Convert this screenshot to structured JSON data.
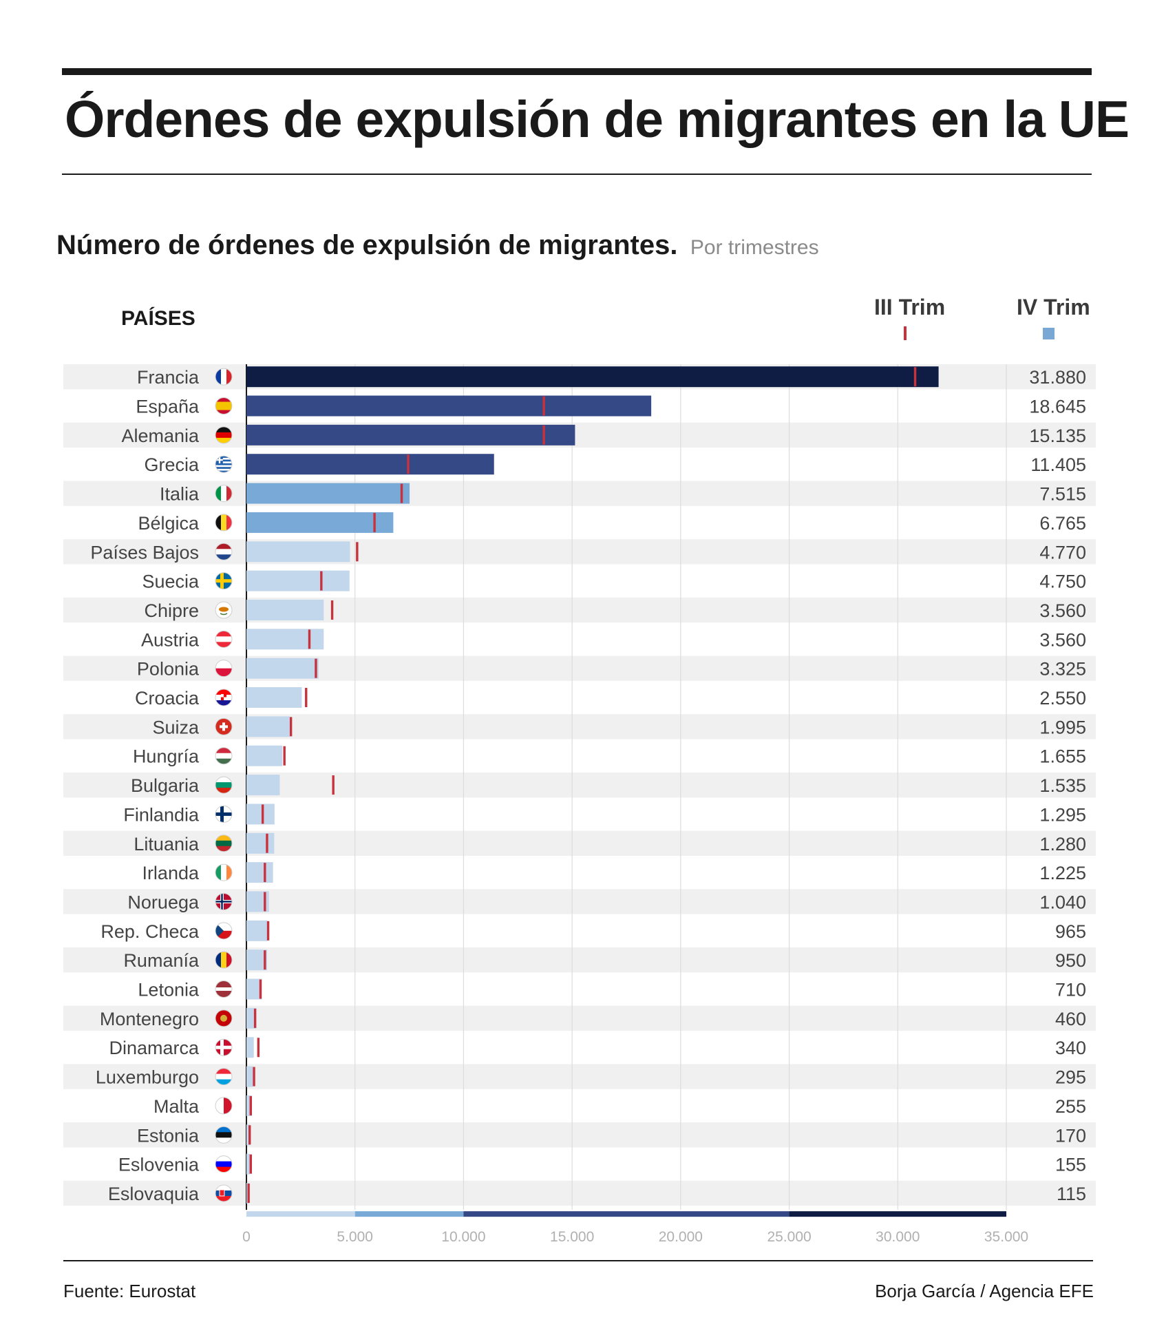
{
  "title": "Órdenes de expulsión de migrantes en la UE",
  "subtitle": "Número de órdenes de expulsión de migrantes.",
  "subtitle_note": "Por trimestres",
  "column_header": "PAÍSES",
  "legend": {
    "q3": "III Trim",
    "q4": "IV Trim",
    "q3_color": "#c8323c",
    "q4_color": "#7aa8d4"
  },
  "footer": {
    "source": "Fuente: Eurostat",
    "credit": "Borja García / Agencia EFE"
  },
  "colors": {
    "scale": [
      {
        "from": 0,
        "to": 5000,
        "color": "#c3d7ec"
      },
      {
        "from": 5000,
        "to": 10000,
        "color": "#79a9d6"
      },
      {
        "from": 10000,
        "to": 25000,
        "color": "#344985"
      },
      {
        "from": 25000,
        "to": 35000,
        "color": "#0f1d45"
      }
    ],
    "row_stripe": "#f0f0f0",
    "marker": "#c8323c"
  },
  "chart_data": {
    "type": "bar",
    "orientation": "horizontal",
    "xlim": [
      0,
      35000
    ],
    "x_ticks": [
      "0",
      "5.000",
      "10.000",
      "15.000",
      "20.000",
      "25.000",
      "30.000",
      "35.000"
    ],
    "x_tick_values": [
      0,
      5000,
      10000,
      15000,
      20000,
      25000,
      30000,
      35000
    ],
    "grid": true,
    "legend_position": "top-right",
    "categories": [
      "Francia",
      "España",
      "Alemania",
      "Grecia",
      "Italia",
      "Bélgica",
      "Países Bajos",
      "Suecia",
      "Chipre",
      "Austria",
      "Polonia",
      "Croacia",
      "Suiza",
      "Hungría",
      "Bulgaria",
      "Finlandia",
      "Lituania",
      "Irlanda",
      "Noruega",
      "Rep. Checa",
      "Rumanía",
      "Letonia",
      "Montenegro",
      "Dinamarca",
      "Luxemburgo",
      "Malta",
      "Estonia",
      "Eslovenia",
      "Eslovaquia"
    ],
    "flags": [
      "france-flag-icon",
      "spain-flag-icon",
      "germany-flag-icon",
      "greece-flag-icon",
      "italy-flag-icon",
      "belgium-flag-icon",
      "netherlands-flag-icon",
      "sweden-flag-icon",
      "cyprus-flag-icon",
      "austria-flag-icon",
      "poland-flag-icon",
      "croatia-flag-icon",
      "switzerland-flag-icon",
      "hungary-flag-icon",
      "bulgaria-flag-icon",
      "finland-flag-icon",
      "lithuania-flag-icon",
      "ireland-flag-icon",
      "norway-flag-icon",
      "czechia-flag-icon",
      "romania-flag-icon",
      "latvia-flag-icon",
      "montenegro-flag-icon",
      "denmark-flag-icon",
      "luxembourg-flag-icon",
      "malta-flag-icon",
      "estonia-flag-icon",
      "slovenia-flag-icon",
      "slovakia-flag-icon"
    ],
    "series": [
      {
        "name": "IV Trim",
        "values": [
          31880,
          18645,
          15135,
          11405,
          7515,
          6765,
          4770,
          4750,
          3560,
          3560,
          3325,
          2550,
          1995,
          1655,
          1535,
          1295,
          1280,
          1225,
          1040,
          965,
          950,
          710,
          460,
          340,
          295,
          255,
          170,
          155,
          115
        ]
      },
      {
        "name": "III Trim",
        "values": [
          30800,
          13700,
          13700,
          7450,
          7150,
          5900,
          5100,
          3450,
          3950,
          2900,
          3200,
          2750,
          2050,
          1750,
          4000,
          750,
          950,
          850,
          850,
          1000,
          850,
          650,
          400,
          550,
          350,
          200,
          150,
          200,
          100
        ]
      }
    ],
    "value_labels": [
      "31.880",
      "18.645",
      "15.135",
      "11.405",
      "7.515",
      "6.765",
      "4.770",
      "4.750",
      "3.560",
      "3.560",
      "3.325",
      "2.550",
      "1.995",
      "1.655",
      "1.535",
      "1.295",
      "1.280",
      "1.225",
      "1.040",
      "965",
      "950",
      "710",
      "460",
      "340",
      "295",
      "255",
      "170",
      "155",
      "115"
    ]
  }
}
